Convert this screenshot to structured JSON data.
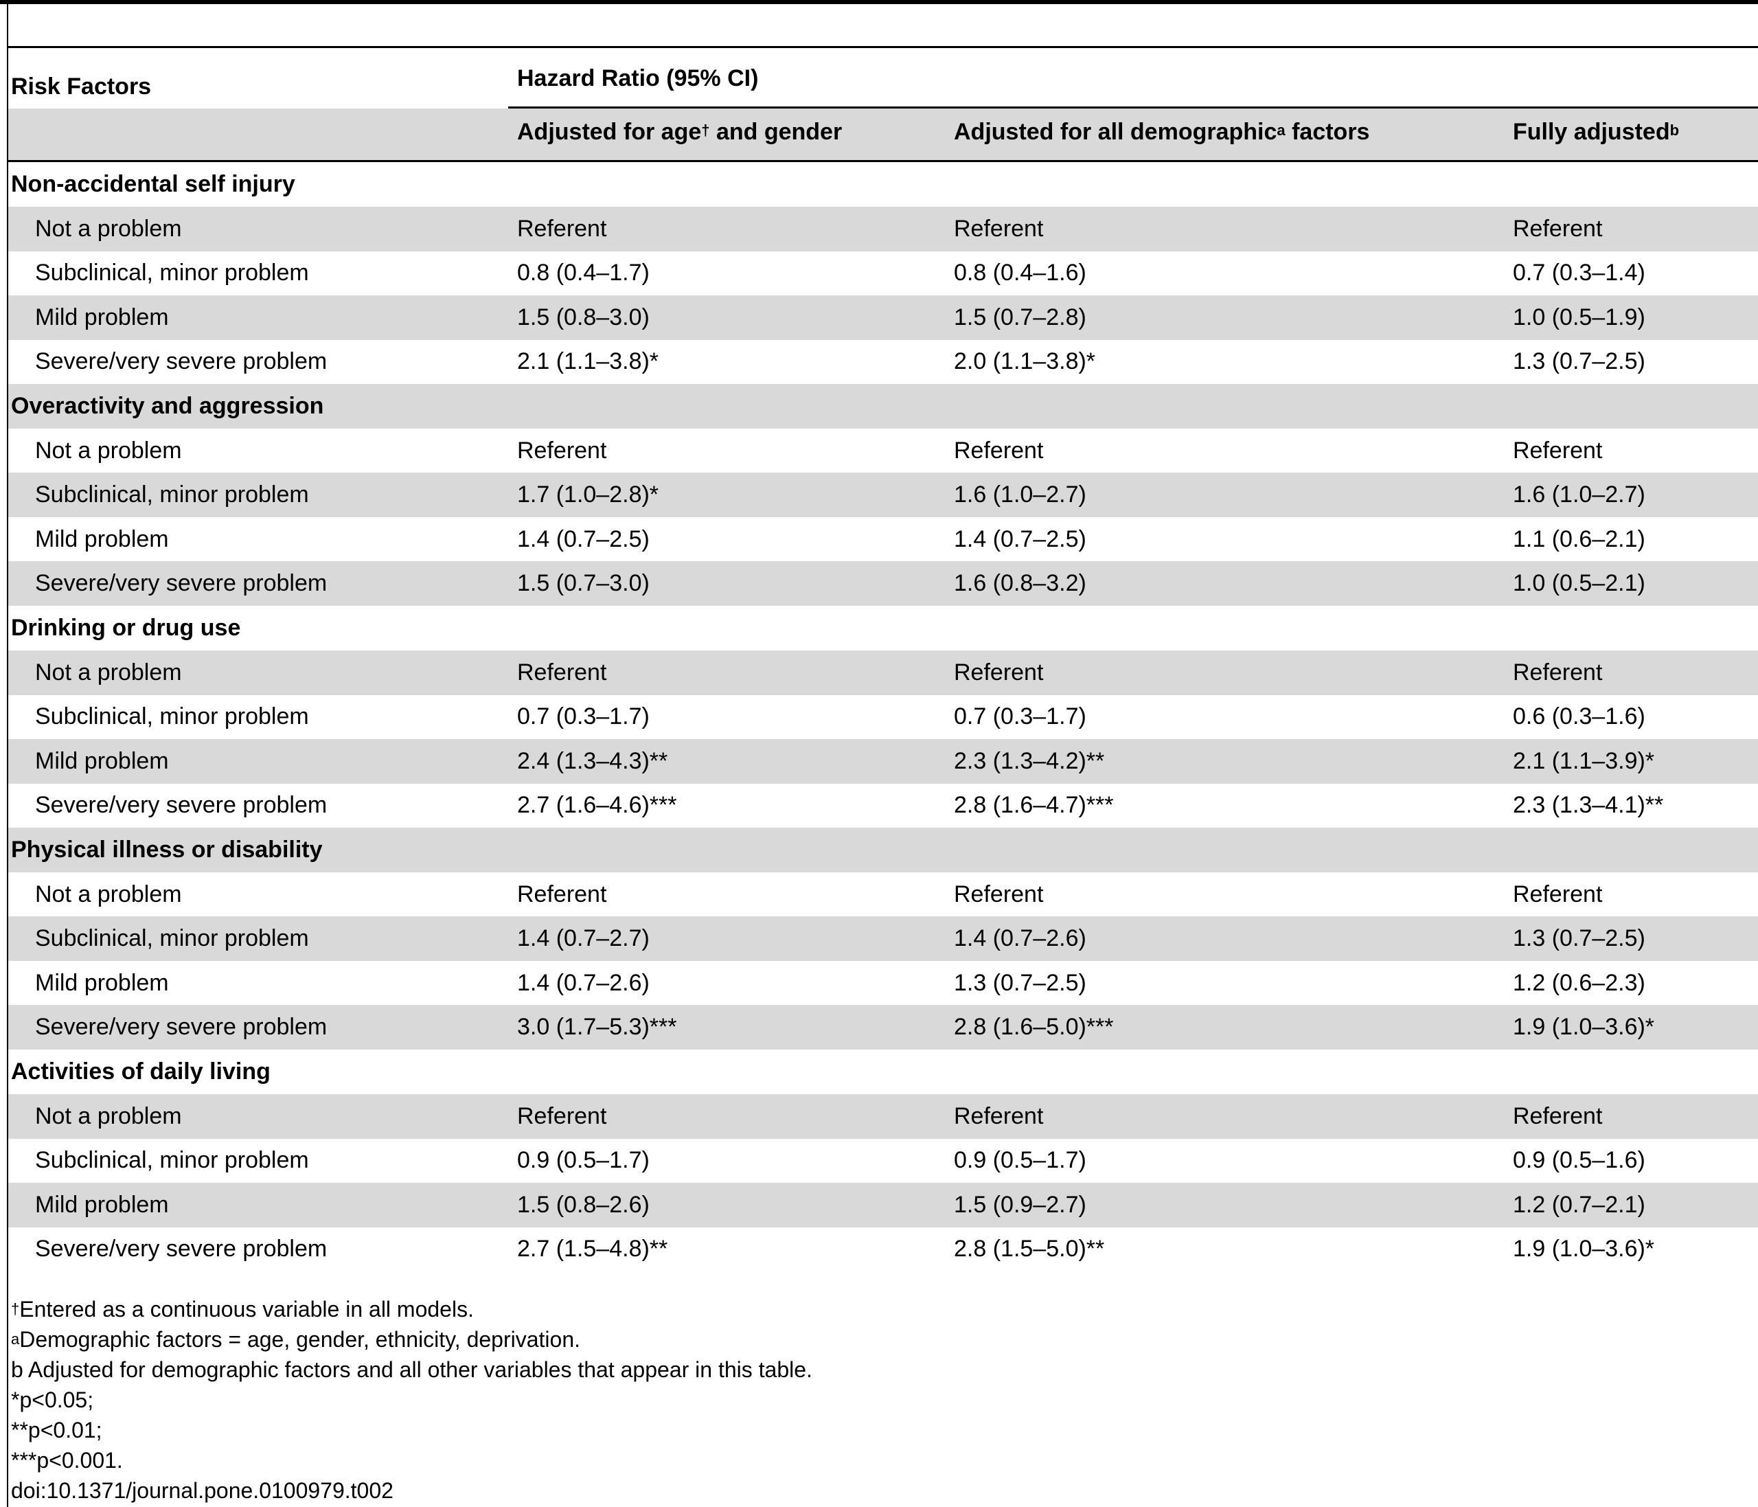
{
  "table": {
    "header": {
      "risk_factors": "Risk Factors",
      "hazard_ratio": "Hazard Ratio (95% CI)",
      "col1_pre": "Adjusted for age",
      "col1_sup": "†",
      "col1_post": " and gender",
      "col2_pre": "Adjusted for all demographic",
      "col2_sup": "a",
      "col2_post": " factors",
      "col3_pre": "Fully adjusted",
      "col3_sup": "b"
    },
    "groups": [
      {
        "name": "Non-accidental self injury",
        "rows": [
          {
            "label": "Not a problem",
            "v1": "Referent",
            "v2": "Referent",
            "v3": "Referent"
          },
          {
            "label": "Subclinical, minor problem",
            "v1": "0.8 (0.4–1.7)",
            "v2": "0.8 (0.4–1.6)",
            "v3": "0.7 (0.3–1.4)"
          },
          {
            "label": "Mild problem",
            "v1": "1.5 (0.8–3.0)",
            "v2": "1.5 (0.7–2.8)",
            "v3": "1.0 (0.5–1.9)"
          },
          {
            "label": "Severe/very severe problem",
            "v1": "2.1 (1.1–3.8)*",
            "v2": "2.0 (1.1–3.8)*",
            "v3": "1.3 (0.7–2.5)"
          }
        ]
      },
      {
        "name": "Overactivity and aggression",
        "rows": [
          {
            "label": "Not a problem",
            "v1": "Referent",
            "v2": "Referent",
            "v3": "Referent"
          },
          {
            "label": "Subclinical, minor problem",
            "v1": "1.7 (1.0–2.8)*",
            "v2": "1.6 (1.0–2.7)",
            "v3": "1.6 (1.0–2.7)"
          },
          {
            "label": "Mild problem",
            "v1": "1.4 (0.7–2.5)",
            "v2": "1.4 (0.7–2.5)",
            "v3": "1.1 (0.6–2.1)"
          },
          {
            "label": "Severe/very severe problem",
            "v1": "1.5 (0.7–3.0)",
            "v2": "1.6 (0.8–3.2)",
            "v3": "1.0 (0.5–2.1)"
          }
        ]
      },
      {
        "name": "Drinking or drug use",
        "rows": [
          {
            "label": "Not a problem",
            "v1": "Referent",
            "v2": "Referent",
            "v3": "Referent"
          },
          {
            "label": "Subclinical, minor problem",
            "v1": "0.7 (0.3–1.7)",
            "v2": "0.7 (0.3–1.7)",
            "v3": "0.6 (0.3–1.6)"
          },
          {
            "label": "Mild problem",
            "v1": "2.4 (1.3–4.3)**",
            "v2": "2.3 (1.3–4.2)**",
            "v3": "2.1 (1.1–3.9)*"
          },
          {
            "label": "Severe/very severe problem",
            "v1": "2.7 (1.6–4.6)***",
            "v2": "2.8 (1.6–4.7)***",
            "v3": "2.3 (1.3–4.1)**"
          }
        ]
      },
      {
        "name": "Physical illness or disability",
        "rows": [
          {
            "label": "Not a problem",
            "v1": "Referent",
            "v2": "Referent",
            "v3": "Referent"
          },
          {
            "label": "Subclinical, minor problem",
            "v1": "1.4 (0.7–2.7)",
            "v2": "1.4 (0.7–2.6)",
            "v3": "1.3 (0.7–2.5)"
          },
          {
            "label": "Mild problem",
            "v1": "1.4 (0.7–2.6)",
            "v2": "1.3 (0.7–2.5)",
            "v3": "1.2 (0.6–2.3)"
          },
          {
            "label": "Severe/very severe problem",
            "v1": "3.0 (1.7–5.3)***",
            "v2": "2.8 (1.6–5.0)***",
            "v3": "1.9 (1.0–3.6)*"
          }
        ]
      },
      {
        "name": "Activities of daily living",
        "rows": [
          {
            "label": "Not a problem",
            "v1": "Referent",
            "v2": "Referent",
            "v3": "Referent"
          },
          {
            "label": "Subclinical, minor problem",
            "v1": "0.9 (0.5–1.7)",
            "v2": "0.9 (0.5–1.7)",
            "v3": "0.9 (0.5–1.6)"
          },
          {
            "label": "Mild problem",
            "v1": "1.5 (0.8–2.6)",
            "v2": "1.5 (0.9–2.7)",
            "v3": "1.2 (0.7–2.1)"
          },
          {
            "label": "Severe/very severe problem",
            "v1": "2.7 (1.5–4.8)**",
            "v2": "2.8 (1.5–5.0)**",
            "v3": "1.9 (1.0–3.6)*"
          }
        ]
      }
    ]
  },
  "footnotes": {
    "dagger_sup": "†",
    "dagger_text": "Entered as a continuous variable in all models.",
    "a_sup": "a",
    "a_text": "Demographic factors = age, gender, ethnicity, deprivation.",
    "b_text": "b Adjusted for demographic factors and all other variables that appear in this table.",
    "p1": "*p<0.05;",
    "p2": "**p<0.01;",
    "p3": "***p<0.001.",
    "doi": "doi:10.1371/journal.pone.0100979.t002"
  }
}
